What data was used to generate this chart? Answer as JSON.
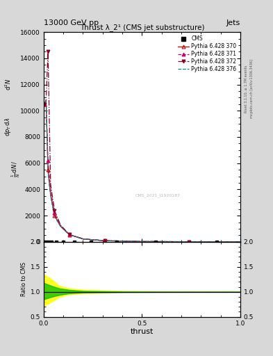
{
  "title_top": "13000 GeV pp",
  "title_right": "Jets",
  "right_label": "Rivet 3.1.10, ≥ 1.7M events",
  "right_label2": "mcplots.cern.ch [arXiv:1306.3436]",
  "plot_title": "Thrust λ_2¹ (CMS jet substructure)",
  "watermark": "CMS_2021_I1920187",
  "xlabel": "thrust",
  "ylabel_lines": [
    "mathrm d^{2}N",
    "mathrm d p_{T} mathrm d lambda"
  ],
  "background_color": "#d8d8d8",
  "main_bg": "#ffffff",
  "ratio_bg": "#ffffff",
  "x_data": [
    0.005,
    0.012,
    0.022,
    0.035,
    0.055,
    0.085,
    0.13,
    0.2,
    0.31,
    0.48,
    0.74,
    1.0
  ],
  "py370_y": [
    10500,
    10800,
    5500,
    3600,
    2000,
    1200,
    550,
    220,
    90,
    30,
    8,
    2
  ],
  "py371_y": [
    10500,
    10800,
    6200,
    4000,
    2200,
    1250,
    560,
    225,
    91,
    31,
    8,
    2
  ],
  "py372_y": [
    10500,
    10800,
    14500,
    4400,
    2400,
    1300,
    570,
    230,
    92,
    31,
    8,
    2
  ],
  "py376_y": [
    10500,
    10800,
    5300,
    3500,
    1950,
    1180,
    545,
    218,
    89,
    29,
    8,
    2
  ],
  "cms_x": [
    0.005,
    0.015,
    0.025,
    0.04,
    0.065,
    0.1,
    0.155,
    0.24,
    0.37,
    0.57,
    0.88
  ],
  "cms_y": [
    0,
    0,
    0,
    0,
    0,
    0,
    0,
    0,
    0,
    0,
    0
  ],
  "color_370": "#cc0000",
  "color_371": "#cc0066",
  "color_372": "#880022",
  "color_376": "#008888",
  "color_cms": "#000000",
  "color_yellow": "#ffff00",
  "color_green": "#00bb00",
  "ylim_main": [
    0,
    16000
  ],
  "ylim_ratio": [
    0.5,
    2.0
  ],
  "xlim": [
    0.0,
    1.0
  ],
  "yellow_band_x": [
    0.0,
    0.04,
    0.08,
    0.13,
    0.2,
    0.4,
    0.6,
    0.8,
    1.0
  ],
  "yellow_band_low": [
    0.72,
    0.8,
    0.9,
    0.95,
    0.97,
    0.99,
    0.995,
    0.998,
    0.999
  ],
  "yellow_band_high": [
    1.35,
    1.25,
    1.12,
    1.07,
    1.04,
    1.015,
    1.006,
    1.003,
    1.001
  ],
  "green_band_low": [
    0.85,
    0.9,
    0.94,
    0.97,
    0.985,
    0.995,
    0.998,
    0.999,
    1.0
  ],
  "green_band_high": [
    1.18,
    1.12,
    1.07,
    1.04,
    1.018,
    1.006,
    1.003,
    1.001,
    1.001
  ]
}
